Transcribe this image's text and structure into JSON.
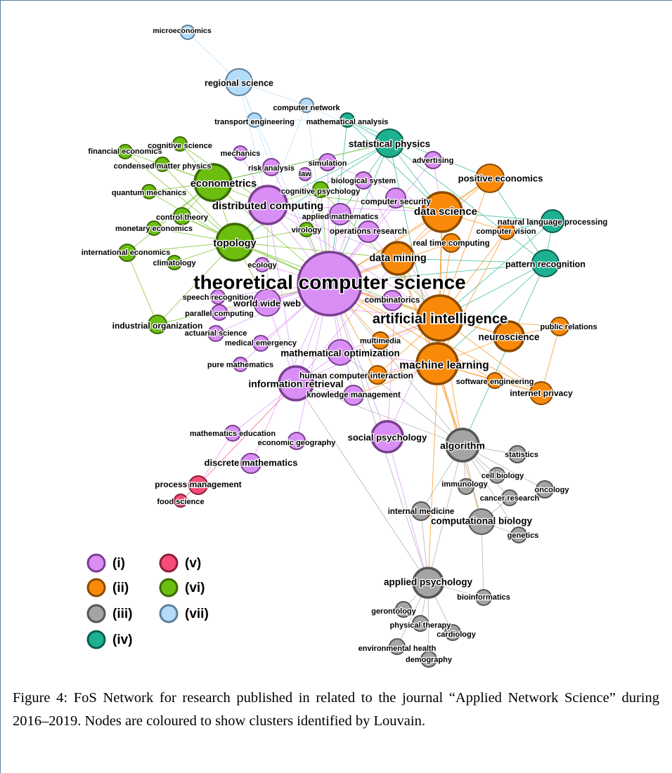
{
  "clusters": [
    {
      "id": "i",
      "label": "(i)",
      "fill": "#d98ef5",
      "stroke": "#7a3f8f"
    },
    {
      "id": "ii",
      "label": "(ii)",
      "fill": "#f98a09",
      "stroke": "#8a4a00"
    },
    {
      "id": "iii",
      "label": "(iii)",
      "fill": "#a4a4a4",
      "stroke": "#555555"
    },
    {
      "id": "iv",
      "label": "(iv)",
      "fill": "#1eb191",
      "stroke": "#0b5e4c"
    },
    {
      "id": "v",
      "label": "(v)",
      "fill": "#f74c78",
      "stroke": "#8c1e3a"
    },
    {
      "id": "vi",
      "label": "(vi)",
      "fill": "#6cbe10",
      "stroke": "#3a6b05"
    },
    {
      "id": "vii",
      "label": "(vii)",
      "fill": "#b3dcfb",
      "stroke": "#5d7f98"
    }
  ],
  "nodes": [
    {
      "id": "microeconomics",
      "c": "vii"
    },
    {
      "id": "regional science",
      "c": "vii"
    },
    {
      "id": "computer network",
      "c": "vii"
    },
    {
      "id": "transport engineering",
      "c": "vii"
    },
    {
      "id": "mathematical analysis",
      "c": "iv"
    },
    {
      "id": "statistical physics",
      "c": "iv"
    },
    {
      "id": "natural language processing",
      "c": "iv"
    },
    {
      "id": "pattern recognition",
      "c": "iv"
    },
    {
      "id": "financial economics",
      "c": "vi"
    },
    {
      "id": "cognitive science",
      "c": "vi"
    },
    {
      "id": "condensed matter physics",
      "c": "vi"
    },
    {
      "id": "econometrics",
      "c": "vi"
    },
    {
      "id": "quantum mechanics",
      "c": "vi"
    },
    {
      "id": "control theory",
      "c": "vi"
    },
    {
      "id": "monetary economics",
      "c": "vi"
    },
    {
      "id": "topology",
      "c": "vi"
    },
    {
      "id": "international economics",
      "c": "vi"
    },
    {
      "id": "climatology",
      "c": "vi"
    },
    {
      "id": "industrial organization",
      "c": "vi"
    },
    {
      "id": "cognitive psychology",
      "c": "vi"
    },
    {
      "id": "virology",
      "c": "vi"
    },
    {
      "id": "mechanics",
      "c": "i"
    },
    {
      "id": "risk analysis",
      "c": "i"
    },
    {
      "id": "law",
      "c": "i"
    },
    {
      "id": "simulation",
      "c": "i"
    },
    {
      "id": "advertising",
      "c": "i"
    },
    {
      "id": "biological system",
      "c": "i"
    },
    {
      "id": "distributed computing",
      "c": "i"
    },
    {
      "id": "computer security",
      "c": "i"
    },
    {
      "id": "applied mathematics",
      "c": "i"
    },
    {
      "id": "operations research",
      "c": "i"
    },
    {
      "id": "ecology",
      "c": "i"
    },
    {
      "id": "theoretical computer science",
      "c": "i"
    },
    {
      "id": "speech recognition",
      "c": "i"
    },
    {
      "id": "world wide web",
      "c": "i"
    },
    {
      "id": "parallel computing",
      "c": "i"
    },
    {
      "id": "combinatorics",
      "c": "i"
    },
    {
      "id": "actuarial science",
      "c": "i"
    },
    {
      "id": "medical emergency",
      "c": "i"
    },
    {
      "id": "mathematical optimization",
      "c": "i"
    },
    {
      "id": "pure mathematics",
      "c": "i"
    },
    {
      "id": "information retrieval",
      "c": "i"
    },
    {
      "id": "knowledge management",
      "c": "i"
    },
    {
      "id": "mathematics education",
      "c": "i"
    },
    {
      "id": "economic geography",
      "c": "i"
    },
    {
      "id": "social psychology",
      "c": "i"
    },
    {
      "id": "discrete mathematics",
      "c": "i"
    },
    {
      "id": "positive economics",
      "c": "ii"
    },
    {
      "id": "data science",
      "c": "ii"
    },
    {
      "id": "computer vision",
      "c": "ii"
    },
    {
      "id": "real time computing",
      "c": "ii"
    },
    {
      "id": "data mining",
      "c": "ii"
    },
    {
      "id": "artificial intelligence",
      "c": "ii"
    },
    {
      "id": "public relations",
      "c": "ii"
    },
    {
      "id": "neuroscience",
      "c": "ii"
    },
    {
      "id": "multimedia",
      "c": "ii"
    },
    {
      "id": "machine learning",
      "c": "ii"
    },
    {
      "id": "human computer interaction",
      "c": "ii"
    },
    {
      "id": "software engineering",
      "c": "ii"
    },
    {
      "id": "internet privacy",
      "c": "ii"
    },
    {
      "id": "process management",
      "c": "v"
    },
    {
      "id": "food science",
      "c": "v"
    },
    {
      "id": "algorithm",
      "c": "iii"
    },
    {
      "id": "statistics",
      "c": "iii"
    },
    {
      "id": "cell biology",
      "c": "iii"
    },
    {
      "id": "immunology",
      "c": "iii"
    },
    {
      "id": "oncology",
      "c": "iii"
    },
    {
      "id": "cancer research",
      "c": "iii"
    },
    {
      "id": "internal medicine",
      "c": "iii"
    },
    {
      "id": "computational biology",
      "c": "iii"
    },
    {
      "id": "genetics",
      "c": "iii"
    },
    {
      "id": "applied psychology",
      "c": "iii"
    },
    {
      "id": "bioinformatics",
      "c": "iii"
    },
    {
      "id": "gerontology",
      "c": "iii"
    },
    {
      "id": "physical therapy",
      "c": "iii"
    },
    {
      "id": "cardiology",
      "c": "iii"
    },
    {
      "id": "environmental health",
      "c": "iii"
    },
    {
      "id": "demography",
      "c": "iii"
    }
  ],
  "caption": "Figure 4: FoS Network for research published in related to the journal “Applied Network Science” during 2016–2019. Nodes are coloured to show clusters identified by Louvain."
}
